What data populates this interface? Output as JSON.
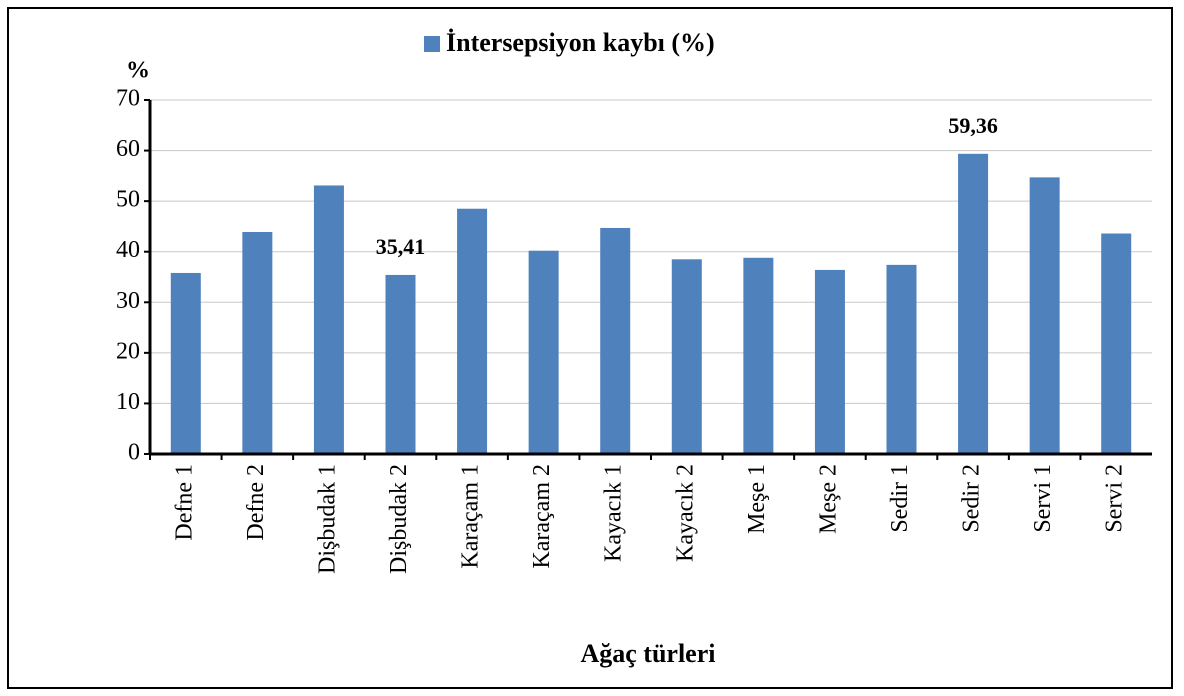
{
  "chart_data": {
    "type": "bar",
    "legend_title": "İntersepsiyon kaybı (%)",
    "y_label": "%",
    "x_label": "Ağaç türleri",
    "categories": [
      "Defne 1",
      "Defne 2",
      "Dişbudak 1",
      "Dişbudak 2",
      "Karaçam 1",
      "Karaçam 2",
      "Kayacık 1",
      "Kayacık 2",
      "Meşe 1",
      "Meşe 2",
      "Sedir 1",
      "Sedir 2",
      "Servi 1",
      "Servi 2"
    ],
    "series": [
      {
        "name": "İntersepsiyon kaybı (%)",
        "color": "#4f81bd",
        "values": [
          35.8,
          43.9,
          53.1,
          35.41,
          48.5,
          40.2,
          44.7,
          38.5,
          38.8,
          36.4,
          37.4,
          59.36,
          54.7,
          43.6
        ],
        "value_labels": [
          null,
          null,
          null,
          "35,41",
          null,
          null,
          null,
          null,
          null,
          null,
          null,
          "59,36",
          null,
          null
        ]
      }
    ],
    "ylim": [
      0,
      70
    ],
    "yticks": [
      0,
      10,
      20,
      30,
      40,
      50,
      60,
      70
    ],
    "grid": true,
    "legend": "top"
  }
}
